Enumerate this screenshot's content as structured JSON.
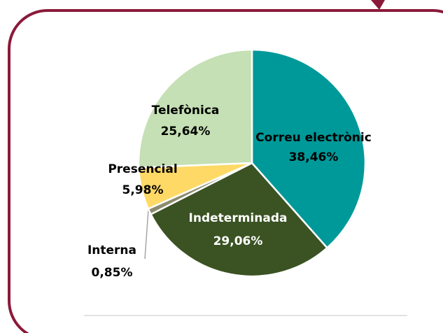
{
  "chart_data": {
    "type": "pie",
    "categories": [
      "Correu electrònic",
      "Indeterminada",
      "Interna",
      "Presencial",
      "Telefònica"
    ],
    "values": [
      38.46,
      29.06,
      0.85,
      5.98,
      25.64
    ],
    "value_labels": [
      "38,46%",
      "29,06%",
      "0,85%",
      "5,98%",
      "25,64%"
    ],
    "colors": [
      "#009999",
      "#3b5323",
      "#8c8c6e",
      "#ffd966",
      "#c5e0b4"
    ]
  }
}
